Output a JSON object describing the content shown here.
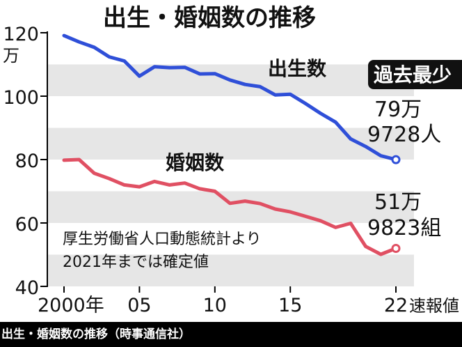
{
  "caption": "出生・婚姻数の推移（時事通信社）",
  "chart_data": {
    "type": "line",
    "title": "出生・婚姻数の推移",
    "y_unit": "万",
    "ylim": [
      40,
      120
    ],
    "y_ticks": [
      "120",
      "100",
      "80",
      "60",
      "40"
    ],
    "x_ticks": [
      {
        "x": 2000,
        "label": "2000年"
      },
      {
        "x": 2005,
        "label": "05"
      },
      {
        "x": 2010,
        "label": "10"
      },
      {
        "x": 2015,
        "label": "15"
      },
      {
        "x": 2022,
        "label": "22"
      }
    ],
    "x_note": "速報値",
    "colors": {
      "births": "#2f4fd8",
      "marriages": "#e05063",
      "band": "#e6e6e6"
    },
    "series": [
      {
        "name": "出生数",
        "x": [
          2000,
          2001,
          2002,
          2003,
          2004,
          2005,
          2006,
          2007,
          2008,
          2009,
          2010,
          2011,
          2012,
          2013,
          2014,
          2015,
          2016,
          2017,
          2018,
          2019,
          2020,
          2021,
          2022
        ],
        "values": [
          119.1,
          117.1,
          115.4,
          112.4,
          111.1,
          106.3,
          109.3,
          109.0,
          109.1,
          107.0,
          107.1,
          105.1,
          103.7,
          103.0,
          100.4,
          100.6,
          97.7,
          94.6,
          91.8,
          86.5,
          84.1,
          81.2,
          79.97
        ]
      },
      {
        "name": "婚姻数",
        "x": [
          2000,
          2001,
          2002,
          2003,
          2004,
          2005,
          2006,
          2007,
          2008,
          2009,
          2010,
          2011,
          2012,
          2013,
          2014,
          2015,
          2016,
          2017,
          2018,
          2019,
          2020,
          2021,
          2022
        ],
        "values": [
          79.8,
          80.0,
          75.7,
          74.0,
          72.0,
          71.4,
          73.1,
          72.0,
          72.6,
          70.8,
          70.0,
          66.2,
          66.9,
          66.1,
          64.4,
          63.5,
          62.1,
          60.7,
          58.6,
          59.9,
          52.6,
          50.1,
          51.98
        ]
      }
    ],
    "annotations": {
      "record_low": "過去最少",
      "births_end_line1": "79万",
      "births_end_line2": "9728人",
      "marriages_end_line1": "51万",
      "marriages_end_line2": "9823組",
      "note_line1": "厚生労働省人口動態統計より",
      "note_line2": "2021年までは確定値"
    }
  }
}
